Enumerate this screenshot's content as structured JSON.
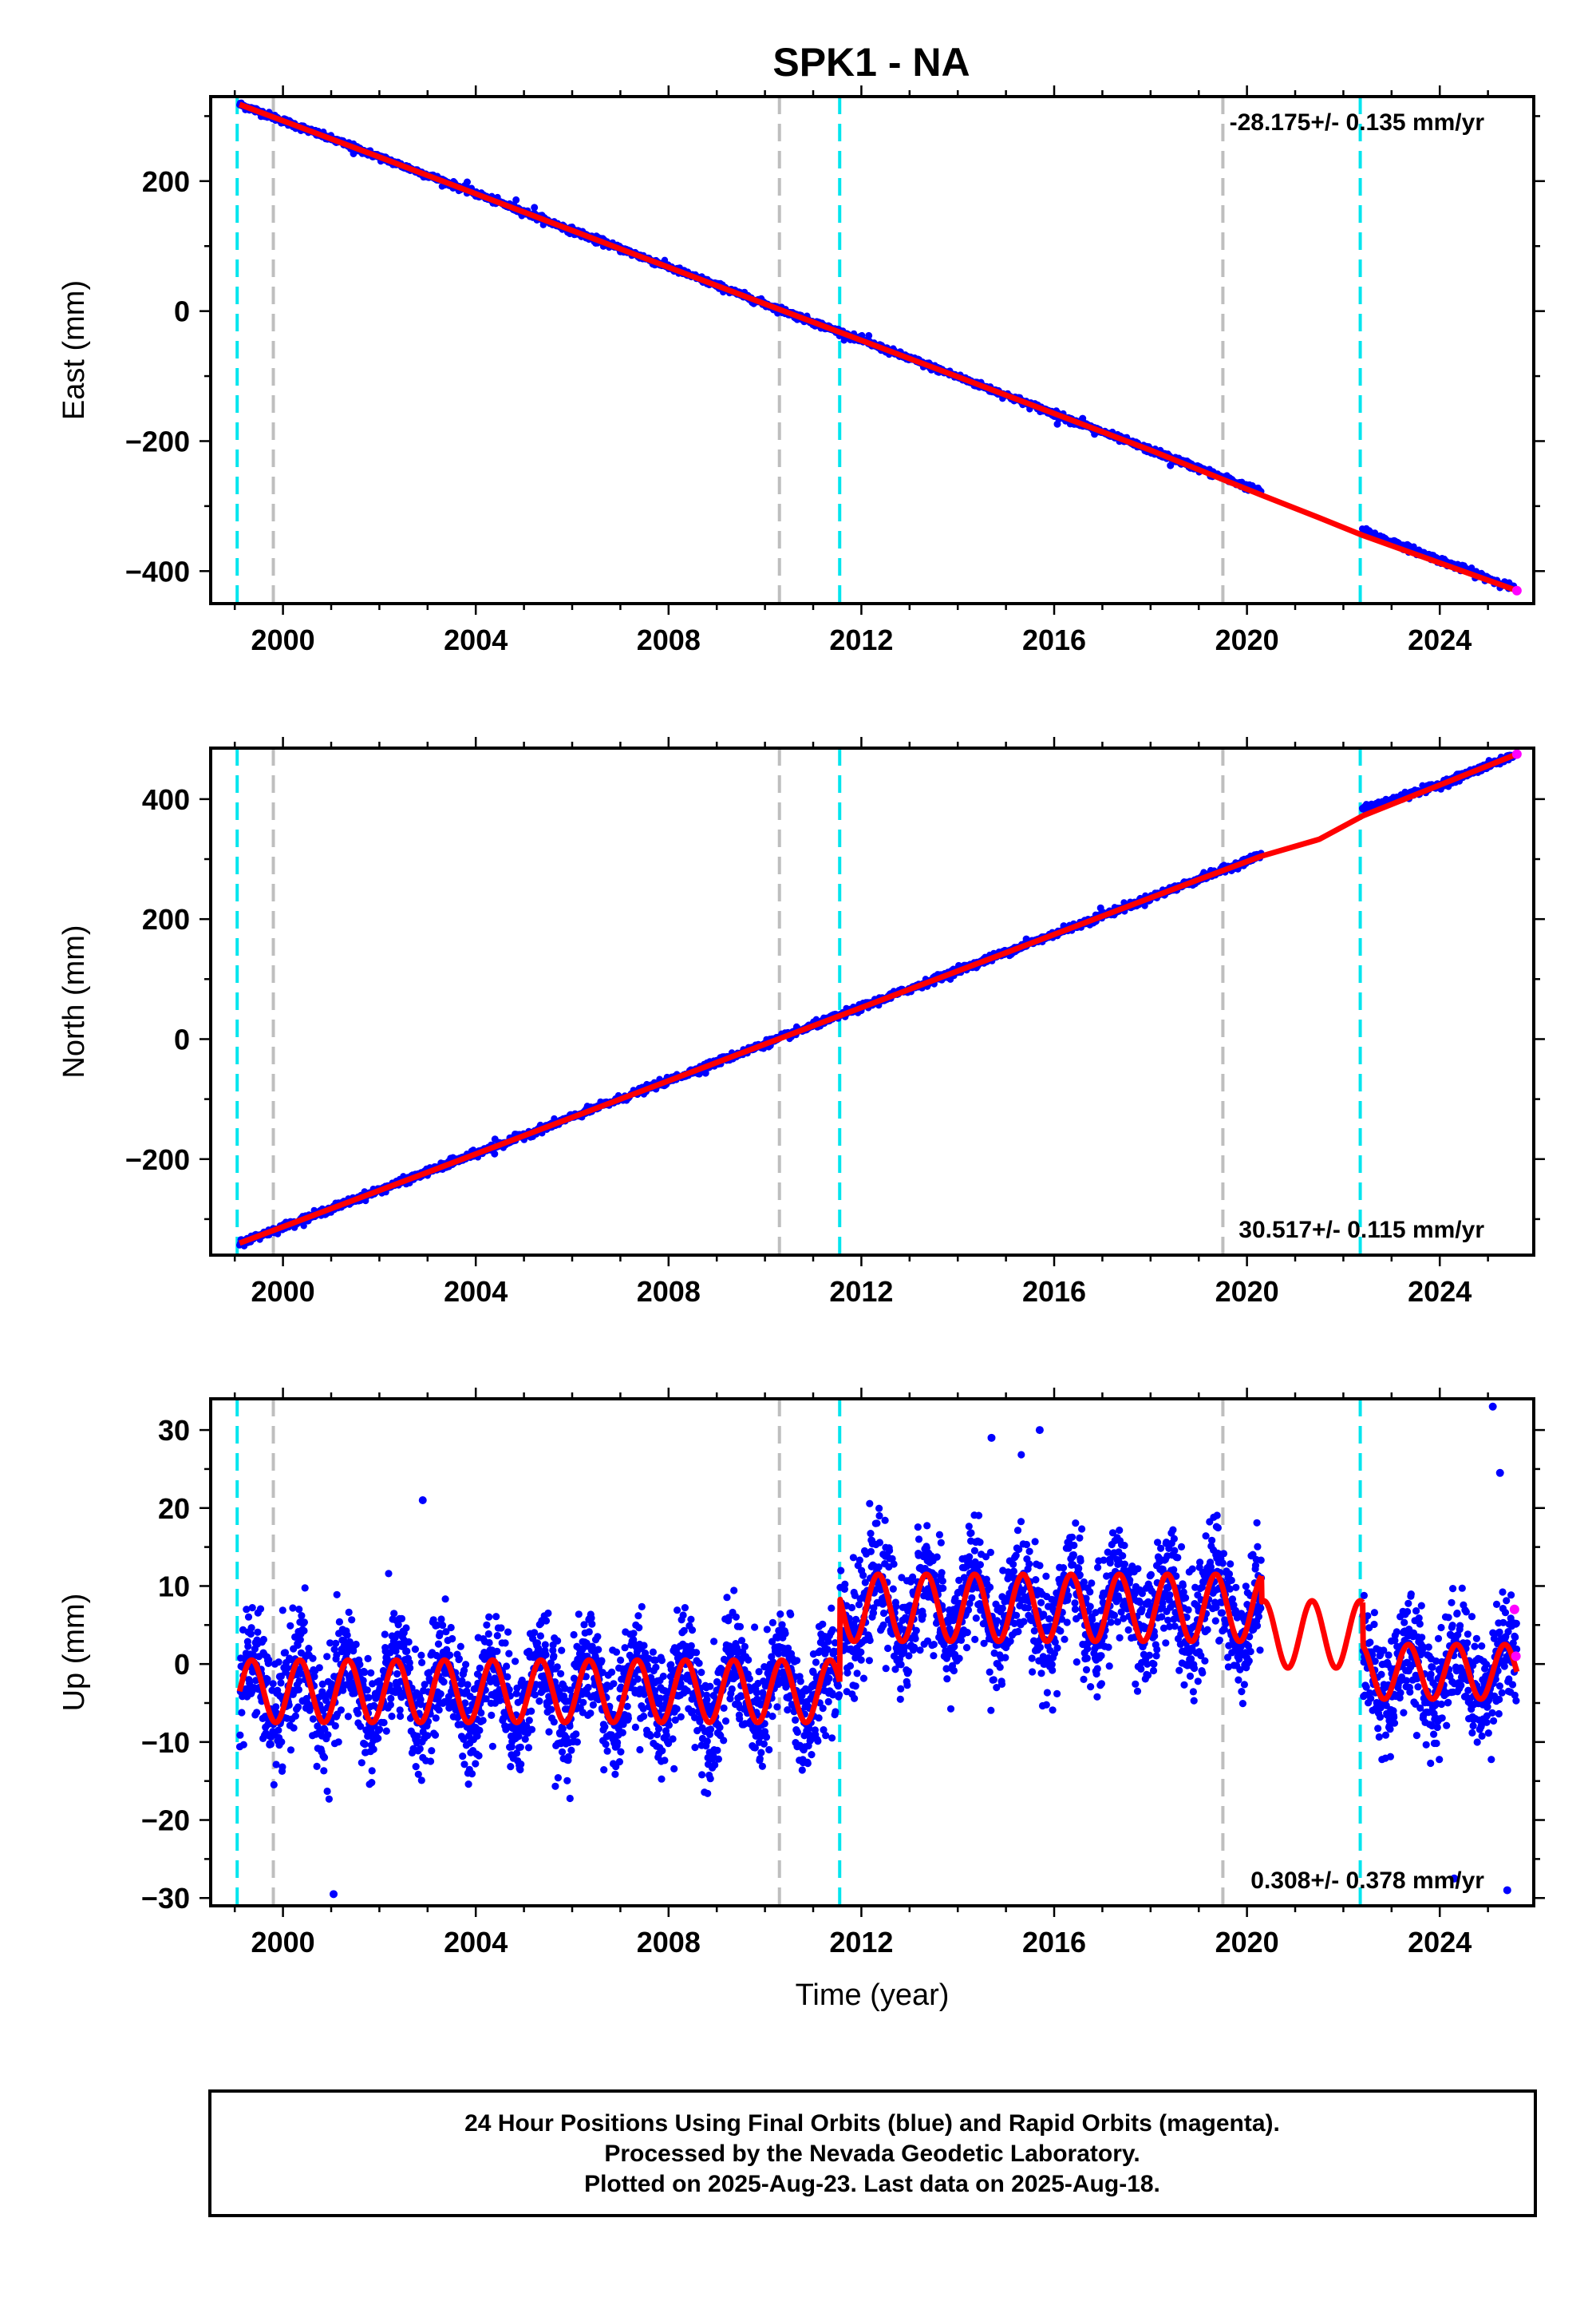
{
  "title": "SPK1 - NA",
  "xlabel": "Time (year)",
  "footer": {
    "line1": "24 Hour Positions Using Final Orbits (blue) and Rapid Orbits (magenta).",
    "line2": "Processed by the Nevada Geodetic Laboratory.",
    "line3": "Plotted on 2025-Aug-23. Last data on 2025-Aug-18."
  },
  "colors": {
    "final_orbits": "#0000ff",
    "rapid_orbits": "#ff00ff",
    "model": "#ff0000",
    "equipment_change": "#00e5ee",
    "other_event": "#bebebe",
    "frame": "#000000"
  },
  "chart_data": [
    {
      "type": "scatter",
      "ylabel": "East (mm)",
      "xlim": [
        1998.5,
        2025.95
      ],
      "ylim": [
        -450,
        330
      ],
      "xticks": [
        2000,
        2004,
        2008,
        2012,
        2016,
        2020,
        2024
      ],
      "yticks": [
        -400,
        -200,
        0,
        200
      ],
      "rate": "-28.175+/- 0.135 mm/yr",
      "rate_position": "top-right",
      "series": [
        {
          "type": "scatter",
          "points": [
            [
              1999.1,
              318
            ],
            [
              2000,
              293
            ],
            [
              2002,
              237
            ],
            [
              2004,
              181
            ],
            [
              2006,
              124
            ],
            [
              2008,
              68
            ],
            [
              2010,
              11
            ],
            [
              2012,
              -45
            ],
            [
              2014,
              -101
            ],
            [
              2016,
              -158
            ],
            [
              2018,
              -214
            ],
            [
              2020,
              -270
            ],
            [
              2022.4,
              -338
            ],
            [
              2024,
              -383
            ],
            [
              2025.5,
              -425
            ]
          ]
        },
        {
          "type": "line",
          "points": [
            [
              1999.1,
              318
            ],
            [
              2002,
              237
            ],
            [
              2006,
              124
            ],
            [
              2010,
              11
            ],
            [
              2014,
              -101
            ],
            [
              2018,
              -214
            ],
            [
              2020.3,
              -283
            ],
            [
              2021.5,
              -318
            ],
            [
              2022.4,
              -345
            ],
            [
              2025.6,
              -430
            ]
          ]
        }
      ]
    },
    {
      "type": "scatter",
      "ylabel": "North (mm)",
      "xlim": [
        1998.5,
        2025.95
      ],
      "ylim": [
        -360,
        485
      ],
      "xticks": [
        2000,
        2004,
        2008,
        2012,
        2016,
        2020,
        2024
      ],
      "yticks": [
        -200,
        0,
        200,
        400
      ],
      "rate": "30.517+/- 0.115 mm/yr",
      "rate_position": "bottom-right",
      "series": [
        {
          "type": "scatter",
          "points": [
            [
              1999.1,
              -340
            ],
            [
              2000,
              -313
            ],
            [
              2002,
              -252
            ],
            [
              2004,
              -191
            ],
            [
              2006,
              -130
            ],
            [
              2008,
              -69
            ],
            [
              2010,
              -8
            ],
            [
              2012,
              53
            ],
            [
              2014,
              114
            ],
            [
              2016,
              175
            ],
            [
              2018,
              236
            ],
            [
              2020,
              297
            ],
            [
              2022.4,
              383
            ],
            [
              2024,
              424
            ],
            [
              2025.6,
              475
            ]
          ]
        },
        {
          "type": "line",
          "points": [
            [
              1999.1,
              -340
            ],
            [
              2003,
              -222
            ],
            [
              2007,
              -100
            ],
            [
              2011,
              22
            ],
            [
              2015,
              144
            ],
            [
              2019,
              266
            ],
            [
              2020.3,
              305
            ],
            [
              2021.5,
              333
            ],
            [
              2022.4,
              372
            ],
            [
              2025.6,
              475
            ]
          ]
        }
      ]
    },
    {
      "type": "scatter",
      "ylabel": "Up (mm)",
      "xlim": [
        1998.5,
        2025.95
      ],
      "ylim": [
        -31,
        34
      ],
      "xticks": [
        2000,
        2004,
        2008,
        2012,
        2016,
        2020,
        2024
      ],
      "yticks": [
        -30,
        -20,
        -10,
        0,
        10,
        20,
        30
      ],
      "rate": "0.308+/- 0.378 mm/yr",
      "rate_position": "bottom-right",
      "segments": [
        {
          "start": 1999.1,
          "end": 2011.55,
          "base": -3.5,
          "amp": 4.0,
          "data": true
        },
        {
          "start": 2011.55,
          "end": 2020.3,
          "base": 7.2,
          "amp": 4.3,
          "data": true
        },
        {
          "start": 2020.3,
          "end": 2022.4,
          "base": 3.8,
          "amp": 4.3,
          "data": false
        },
        {
          "start": 2022.4,
          "end": 2025.6,
          "base": -1.0,
          "amp": 3.5,
          "data": true
        }
      ],
      "series": [
        {
          "type": "scatter",
          "name": "",
          "points": []
        }
      ],
      "rapid_points": [
        [
          2025.55,
          7.0
        ],
        [
          2025.58,
          1.0
        ]
      ],
      "outliers": [
        [
          2001.05,
          -29.5
        ],
        [
          2025.1,
          33
        ],
        [
          2025.25,
          24.5
        ],
        [
          2002.9,
          21
        ],
        [
          2015.7,
          30
        ],
        [
          2014.7,
          29
        ],
        [
          2024.3,
          -27.5
        ],
        [
          2025.4,
          -29
        ]
      ]
    }
  ],
  "event_lines": {
    "equipment_change": [
      1999.05,
      2011.55,
      2022.35
    ],
    "other_event": [
      1999.8,
      2010.3,
      2019.5
    ]
  }
}
